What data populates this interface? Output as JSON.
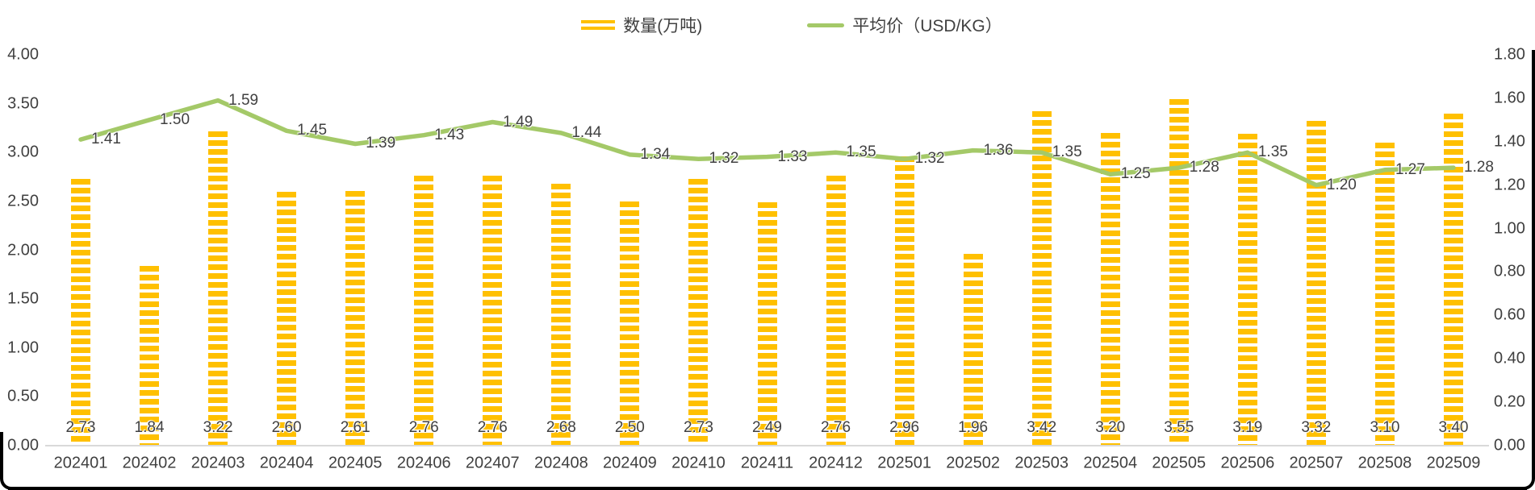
{
  "legend": {
    "bar_label": "数量(万吨)",
    "line_label": "平均价（USD/KG）"
  },
  "colors": {
    "bar": "#FFC000",
    "line": "#A4C968",
    "axis_line": "#D9D9D9",
    "text": "#404040"
  },
  "chart_data": {
    "type": "bar",
    "subtype": "combo-bar-line",
    "categories": [
      "202401",
      "202402",
      "202403",
      "202404",
      "202405",
      "202406",
      "202407",
      "202408",
      "202409",
      "202410",
      "202411",
      "202412",
      "202501",
      "202502",
      "202503",
      "202504",
      "202505",
      "202506",
      "202507",
      "202508",
      "202509"
    ],
    "series": [
      {
        "name": "数量(万吨)",
        "type": "bar",
        "y_axis": "left",
        "color": "#FFC000",
        "values": [
          2.73,
          1.84,
          3.22,
          2.6,
          2.61,
          2.76,
          2.76,
          2.68,
          2.5,
          2.73,
          2.49,
          2.76,
          2.96,
          1.96,
          3.42,
          3.2,
          3.55,
          3.19,
          3.32,
          3.1,
          3.4
        ]
      },
      {
        "name": "平均价（USD/KG）",
        "type": "line",
        "y_axis": "right",
        "color": "#A4C968",
        "values": [
          1.41,
          1.5,
          1.59,
          1.45,
          1.39,
          1.43,
          1.49,
          1.44,
          1.34,
          1.32,
          1.33,
          1.35,
          1.32,
          1.36,
          1.35,
          1.25,
          1.28,
          1.35,
          1.2,
          1.27,
          1.28
        ]
      }
    ],
    "left_axis": {
      "min": 0,
      "max": 4.0,
      "step": 0.5,
      "tick_format": "0.00"
    },
    "right_axis": {
      "min": 0,
      "max": 1.8,
      "step": 0.2,
      "tick_format": "0.00"
    },
    "gridlines": false,
    "legend_position": "top",
    "data_labels": {
      "bar_position": "inside-base",
      "line_position": "right"
    }
  }
}
